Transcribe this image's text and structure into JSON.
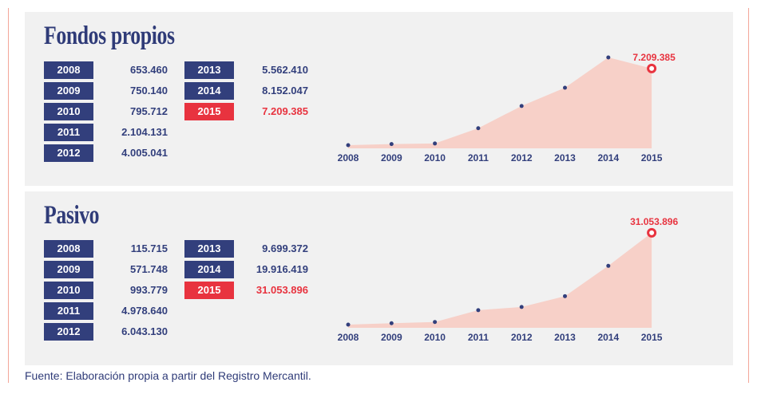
{
  "colors": {
    "navy": "#323f7c",
    "highlight": "#e8333f",
    "area": "#f7d0c8",
    "panel": "#f1f1f1"
  },
  "panels": [
    {
      "title": "Fondos propios",
      "table": [
        {
          "year": "2008",
          "value": "653.460"
        },
        {
          "year": "2009",
          "value": "750.140"
        },
        {
          "year": "2010",
          "value": "795.712"
        },
        {
          "year": "2011",
          "value": "2.104.131"
        },
        {
          "year": "2012",
          "value": "4.005.041"
        },
        {
          "year": "2013",
          "value": "5.562.410"
        },
        {
          "year": "2014",
          "value": "8.152.047"
        },
        {
          "year": "2015",
          "value": "7.209.385",
          "highlight": true
        }
      ]
    },
    {
      "title": "Pasivo",
      "table": [
        {
          "year": "2008",
          "value": "115.715"
        },
        {
          "year": "2009",
          "value": "571.748"
        },
        {
          "year": "2010",
          "value": "993.779"
        },
        {
          "year": "2011",
          "value": "4.978.640"
        },
        {
          "year": "2012",
          "value": "6.043.130"
        },
        {
          "year": "2013",
          "value": "9.699.372"
        },
        {
          "year": "2014",
          "value": "19.916.419"
        },
        {
          "year": "2015",
          "value": "31.053.896",
          "highlight": true
        }
      ]
    }
  ],
  "chart_data": [
    {
      "type": "area",
      "title": "Fondos propios",
      "categories": [
        "2008",
        "2009",
        "2010",
        "2011",
        "2012",
        "2013",
        "2014",
        "2015"
      ],
      "values": [
        653460,
        750140,
        795712,
        2104131,
        4005041,
        5562410,
        8152047,
        7209385
      ],
      "annotation": "7.209.385",
      "grid": false
    },
    {
      "type": "area",
      "title": "Pasivo",
      "categories": [
        "2008",
        "2009",
        "2010",
        "2011",
        "2012",
        "2013",
        "2014",
        "2015"
      ],
      "values": [
        115715,
        571748,
        993779,
        4978640,
        6043130,
        9699372,
        19916419,
        31053896
      ],
      "annotation": "31.053.896",
      "grid": false
    }
  ],
  "footer": "Fuente: Elaboración propia a partir del Registro Mercantil."
}
